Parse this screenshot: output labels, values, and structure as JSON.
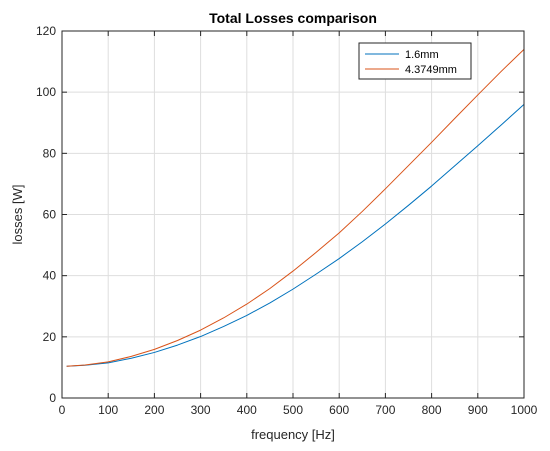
{
  "chart_data": {
    "type": "line",
    "title": "Total Losses comparison",
    "xlabel": "frequency [Hz]",
    "ylabel": "losses [W]",
    "xlim": [
      0,
      1000
    ],
    "ylim": [
      0,
      120
    ],
    "xticks": [
      0,
      100,
      200,
      300,
      400,
      500,
      600,
      700,
      800,
      900,
      1000
    ],
    "yticks": [
      0,
      20,
      40,
      60,
      80,
      100,
      120
    ],
    "grid": true,
    "legend_position": "top-right",
    "x": [
      10,
      50,
      100,
      150,
      200,
      250,
      300,
      350,
      400,
      450,
      500,
      550,
      600,
      650,
      700,
      750,
      800,
      850,
      900,
      950,
      1000
    ],
    "series": [
      {
        "name": "1.6mm",
        "color": "#0072BD",
        "values": [
          10.4,
          10.7,
          11.5,
          13.0,
          14.9,
          17.3,
          20.1,
          23.4,
          27.0,
          31.1,
          35.6,
          40.5,
          45.6,
          51.1,
          56.9,
          63.0,
          69.3,
          75.9,
          82.5,
          89.2,
          96.0
        ]
      },
      {
        "name": "4.3749mm",
        "color": "#D95319",
        "values": [
          10.4,
          10.8,
          11.8,
          13.6,
          15.9,
          18.8,
          22.2,
          26.2,
          30.7,
          35.8,
          41.5,
          47.6,
          54.0,
          61.0,
          68.4,
          76.0,
          83.6,
          91.4,
          99.1,
          106.7,
          114.0
        ]
      }
    ]
  }
}
